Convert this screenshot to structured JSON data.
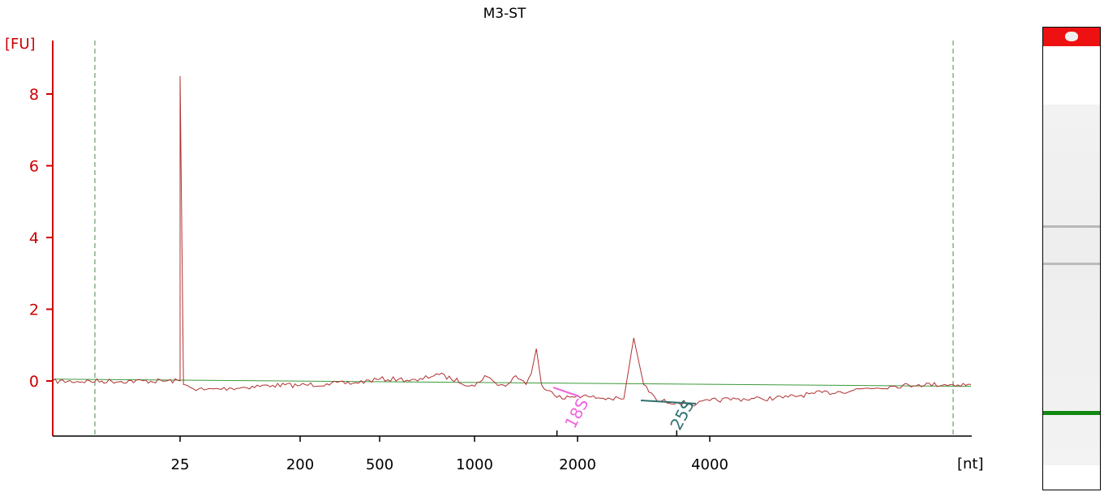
{
  "chart_data": {
    "type": "line",
    "title": "M3-ST",
    "ylabel": "[FU]",
    "xlabel": "[nt]",
    "ylim": [
      -1.5,
      9.3
    ],
    "yticks": [
      0,
      2,
      4,
      6,
      8
    ],
    "x_tick_labels": [
      "25",
      "200",
      "500",
      "1000",
      "2000",
      "4000"
    ],
    "x_axis_scale": "nonlinear (migration-time calibrated), values in nt",
    "grid": false,
    "legend": "none",
    "colors": {
      "trace": "#b03030",
      "baseline": "#3a9a3a",
      "axis": "#cc0000",
      "marker_18S": "#ee66dd",
      "marker_25S": "#2f7070",
      "dashed_bounds": "#4a8a4a"
    },
    "series": [
      {
        "points": [
          [
            0,
            -0.01
          ],
          [
            25,
            0.0
          ],
          [
            25,
            8.5
          ],
          [
            30,
            -0.1
          ],
          [
            40,
            -0.18
          ],
          [
            60,
            -0.25
          ],
          [
            100,
            -0.2
          ],
          [
            160,
            -0.12
          ],
          [
            200,
            -0.12
          ],
          [
            300,
            -0.08
          ],
          [
            400,
            -0.06
          ],
          [
            500,
            0.05
          ],
          [
            600,
            0.05
          ],
          [
            700,
            0.0
          ],
          [
            800,
            0.2
          ],
          [
            1000,
            -0.15
          ],
          [
            1100,
            0.15
          ],
          [
            1200,
            -0.05
          ],
          [
            1300,
            -0.15
          ],
          [
            1400,
            0.15
          ],
          [
            1500,
            -0.1
          ],
          [
            1550,
            0.2
          ],
          [
            1600,
            0.9
          ],
          [
            1650,
            -0.1
          ],
          [
            1750,
            -0.3
          ],
          [
            1850,
            -0.5
          ],
          [
            2000,
            -0.4
          ],
          [
            2200,
            -0.45
          ],
          [
            2500,
            -0.5
          ],
          [
            2700,
            -0.5
          ],
          [
            2850,
            1.2
          ],
          [
            3000,
            -0.1
          ],
          [
            3200,
            -0.55
          ],
          [
            3500,
            -0.6
          ],
          [
            3800,
            -0.65
          ],
          [
            4000,
            -0.55
          ],
          [
            4500,
            -0.5
          ],
          [
            5000,
            -0.5
          ],
          [
            5500,
            -0.45
          ],
          [
            6000,
            -0.35
          ],
          [
            6500,
            -0.3
          ],
          [
            7000,
            -0.2
          ],
          [
            7500,
            -0.15
          ],
          [
            8000,
            -0.1
          ],
          [
            8500,
            -0.1
          ],
          [
            9000,
            -0.1
          ]
        ]
      }
    ],
    "baseline": [
      [
        0,
        0.05
      ],
      [
        9000,
        -0.15
      ]
    ],
    "annotations": [
      {
        "label": "18S",
        "position": "1800"
      },
      {
        "label": "25S",
        "position": "3500"
      }
    ]
  }
}
